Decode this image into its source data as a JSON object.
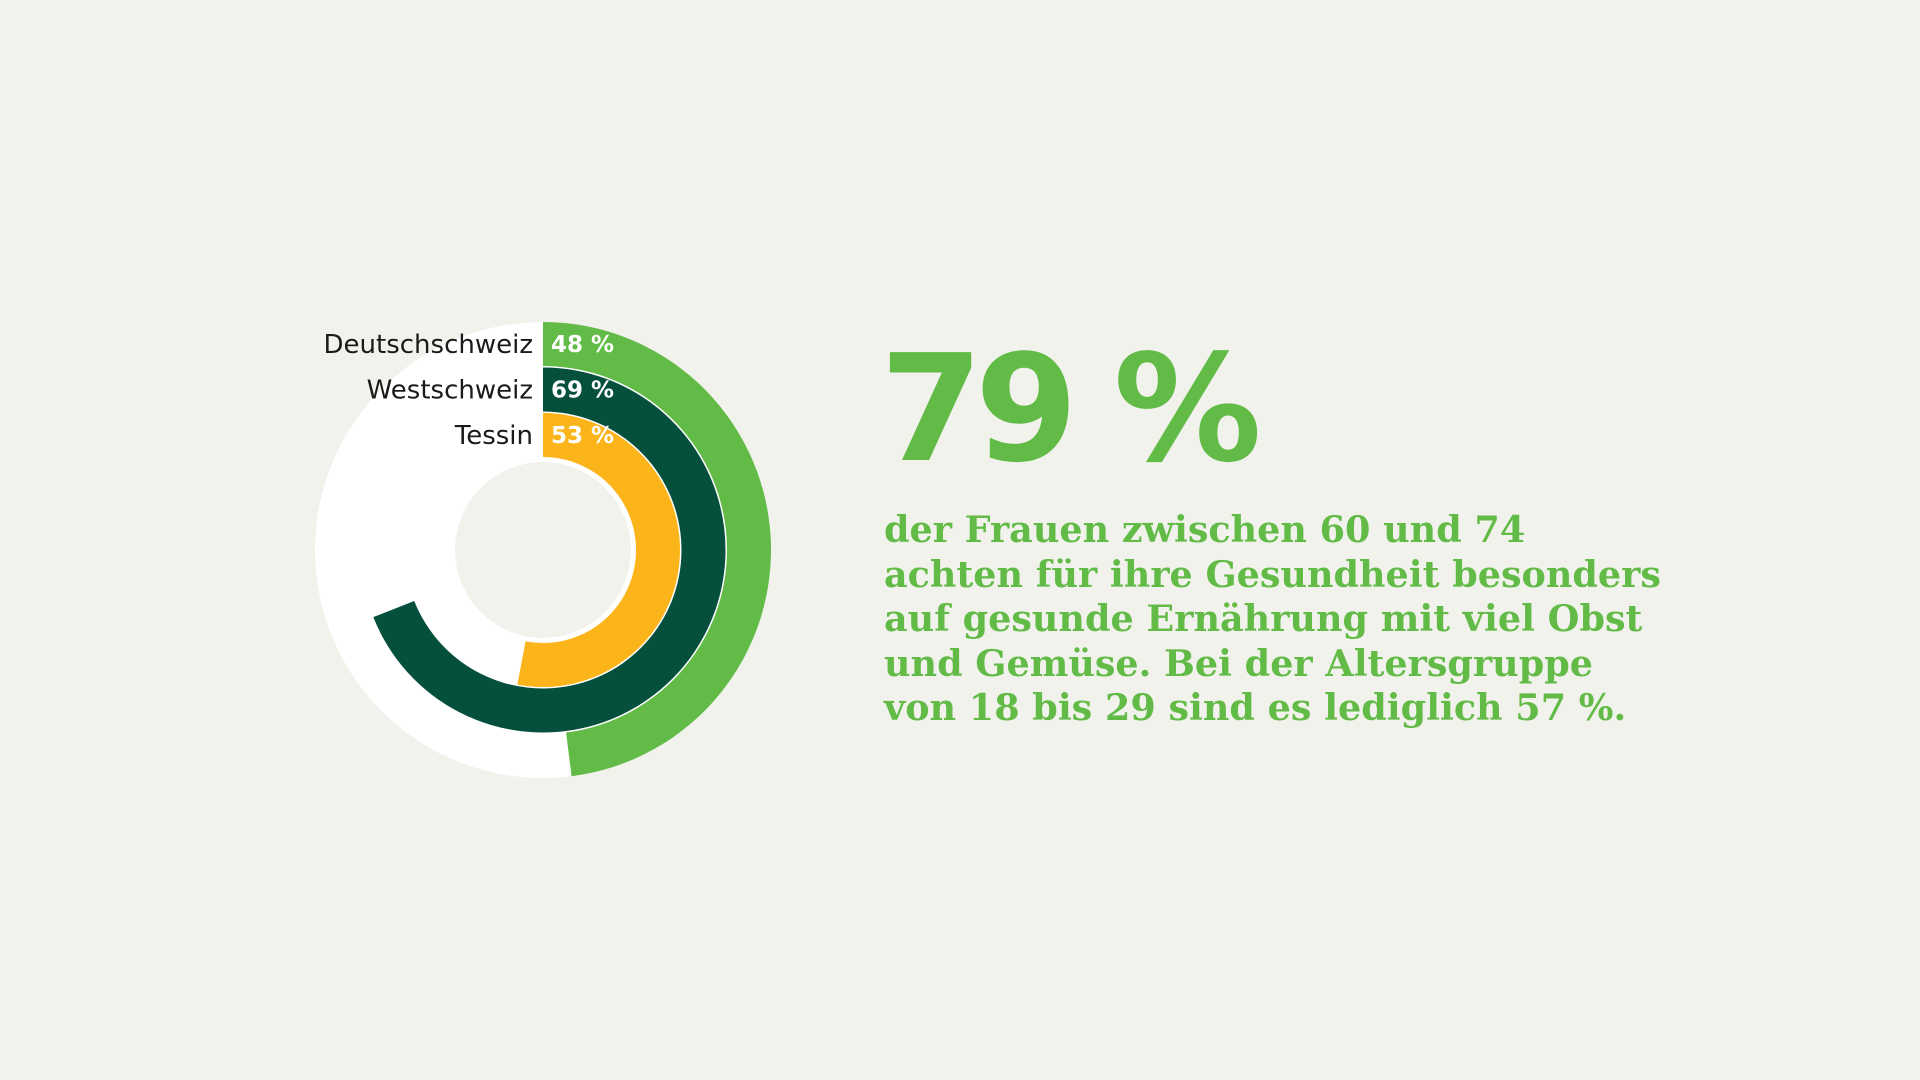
{
  "colors": {
    "background": "#f2f2ed",
    "track": "#ffffff",
    "deutschschweiz": "#62bb46",
    "westschweiz": "#054f3d",
    "tessin": "#fbb51b",
    "headline": "#62bb46"
  },
  "chart_data": {
    "type": "radial-bar",
    "unit": "%",
    "range": [
      0,
      100
    ],
    "series": [
      {
        "name": "Deutschschweiz",
        "value": 48,
        "label": "48 %",
        "color": "#62bb46"
      },
      {
        "name": "Westschweiz",
        "value": 69,
        "label": "69 %",
        "color": "#054f3d"
      },
      {
        "name": "Tessin",
        "value": 53,
        "label": "53 %",
        "color": "#fbb51b"
      }
    ]
  },
  "headline": {
    "value": "79 %"
  },
  "body": {
    "lines": [
      "der Frauen zwischen 60 und 74",
      "achten für ihre Gesundheit besonders",
      "auf gesunde Ernährung mit viel Obst",
      "und Gemüse. Bei der Altersgruppe",
      "von 18 bis 29 sind es lediglich 57 %."
    ]
  }
}
